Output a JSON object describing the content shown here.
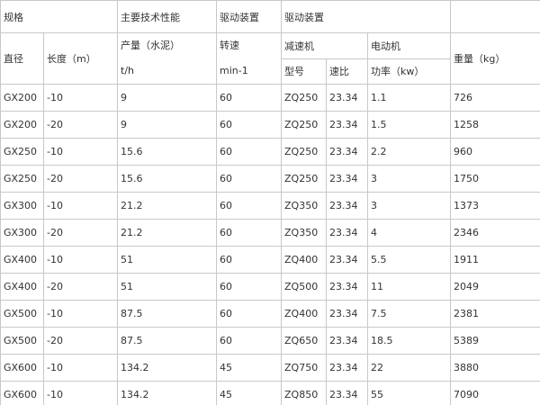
{
  "header": {
    "spec": "规格",
    "performance": "主要技术性能",
    "drive_a": "驱动装置",
    "drive_b": "驱动装置",
    "diameter": "直径",
    "length": "长度（m）",
    "output": "产量（水泥）",
    "output_unit": "t/h",
    "speed": "转速",
    "speed_unit": "min-1",
    "reducer": "减速机",
    "motor": "电动机",
    "weight": "重量（kg）",
    "model": "型号",
    "ratio": "速比",
    "power": "功率（kw）"
  },
  "table": {
    "rows": [
      [
        "GX200",
        "-10",
        "9",
        "60",
        "ZQ250",
        "23.34",
        "1.1",
        "726"
      ],
      [
        "GX200",
        "-20",
        "9",
        "60",
        "ZQ250",
        "23.34",
        "1.5",
        "1258"
      ],
      [
        "GX250",
        "-10",
        "15.6",
        "60",
        "ZQ250",
        "23.34",
        "2.2",
        "960"
      ],
      [
        "GX250",
        "-20",
        "15.6",
        "60",
        "ZQ250",
        "23.34",
        "3",
        "1750"
      ],
      [
        "GX300",
        "-10",
        "21.2",
        "60",
        "ZQ350",
        "23.34",
        "3",
        "1373"
      ],
      [
        "GX300",
        "-20",
        "21.2",
        "60",
        "ZQ350",
        "23.34",
        "4",
        "2346"
      ],
      [
        "GX400",
        "-10",
        "51",
        "60",
        "ZQ400",
        "23.34",
        "5.5",
        "1911"
      ],
      [
        "GX400",
        "-20",
        "51",
        "60",
        "ZQ500",
        "23.34",
        "11",
        "2049"
      ],
      [
        "GX500",
        "-10",
        "87.5",
        "60",
        "ZQ400",
        "23.34",
        "7.5",
        "2381"
      ],
      [
        "GX500",
        "-20",
        "87.5",
        "60",
        "ZQ650",
        "23.34",
        "18.5",
        "5389"
      ],
      [
        "GX600",
        "-10",
        "134.2",
        "45",
        "ZQ750",
        "23.34",
        "22",
        "3880"
      ],
      [
        "GX600",
        "-10",
        "134.2",
        "45",
        "ZQ850",
        "23.34",
        "55",
        "7090"
      ]
    ]
  }
}
